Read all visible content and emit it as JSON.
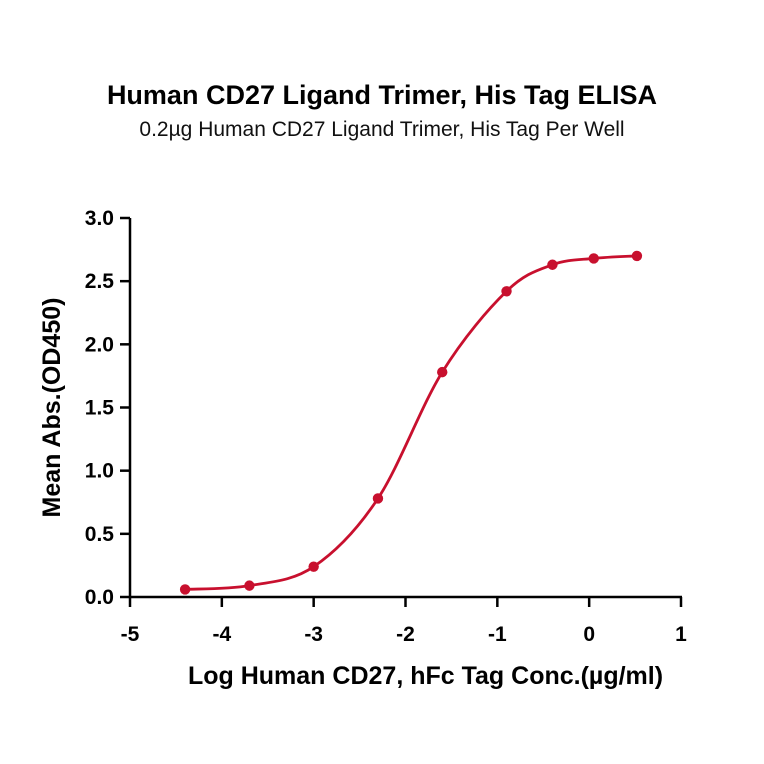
{
  "chart_data": {
    "type": "line",
    "title": "Human CD27 Ligand Trimer, His Tag ELISA",
    "subtitle": "0.2µg Human CD27 Ligand Trimer, His Tag Per Well",
    "xlabel": "Log Human CD27, hFc Tag Conc.(µg/ml)",
    "ylabel": "Mean Abs.(OD450)",
    "xlim": [
      -5,
      1
    ],
    "ylim": [
      0,
      3.0
    ],
    "xticks": [
      "-5",
      "-4",
      "-3",
      "-2",
      "-1",
      "0",
      "1"
    ],
    "yticks": [
      "0.0",
      "0.5",
      "1.0",
      "1.5",
      "2.0",
      "2.5",
      "3.0"
    ],
    "grid": false,
    "series": [
      {
        "color": "#c8102e",
        "x": [
          -4.4,
          -3.7,
          -3.0,
          -2.3,
          -1.6,
          -0.9,
          -0.4,
          0.05,
          0.52
        ],
        "y": [
          0.06,
          0.09,
          0.24,
          0.78,
          1.78,
          2.42,
          2.63,
          2.68,
          2.7
        ]
      }
    ]
  }
}
